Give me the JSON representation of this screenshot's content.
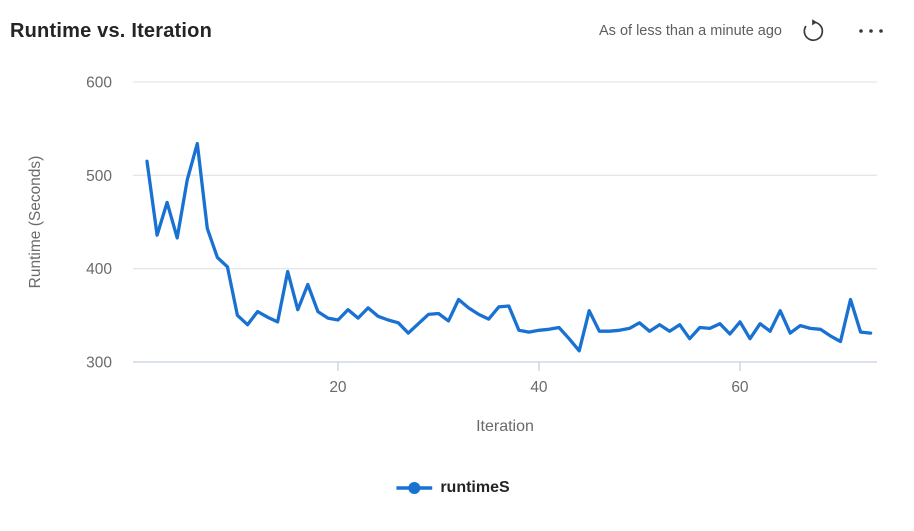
{
  "header": {
    "title": "Runtime vs. Iteration",
    "freshness_text": "As of less than a minute ago",
    "refresh_icon": "refresh-icon",
    "more_icon": "ellipsis-icon"
  },
  "colors": {
    "line": "#1971d2",
    "title_text": "#252423",
    "muted_text": "#605e5c",
    "tick_text": "#6a6a6a",
    "gridline": "#e6e6e6",
    "axis_line": "#c5cfe3",
    "icon": "#3b3a39"
  },
  "chart_data": {
    "type": "line",
    "title": "Runtime vs. Iteration",
    "xlabel": "Iteration",
    "ylabel": "Runtime (Seconds)",
    "x_ticks": [
      20,
      40,
      60
    ],
    "y_ticks": [
      300,
      400,
      500,
      600
    ],
    "xlim": [
      1,
      74
    ],
    "ylim": [
      300,
      600
    ],
    "grid": "horizontal-only",
    "legend_position": "bottom-center",
    "series": [
      {
        "name": "runtimeS",
        "color": "#1971d2",
        "x_start": 1,
        "x_step": 1,
        "values": [
          515,
          436,
          471,
          433,
          495,
          534,
          443,
          412,
          402,
          350,
          340,
          354,
          348,
          343,
          397,
          356,
          383,
          354,
          347,
          345,
          356,
          347,
          358,
          349,
          345,
          342,
          331,
          341,
          351,
          352,
          344,
          367,
          358,
          351,
          346,
          359,
          360,
          334,
          332,
          334,
          335,
          337,
          325,
          312,
          355,
          333,
          333,
          334,
          336,
          342,
          333,
          340,
          333,
          340,
          325,
          337,
          336,
          341,
          330,
          343,
          325,
          341,
          333,
          355,
          331,
          339,
          336,
          335,
          328,
          322,
          367,
          332,
          331
        ]
      }
    ]
  }
}
